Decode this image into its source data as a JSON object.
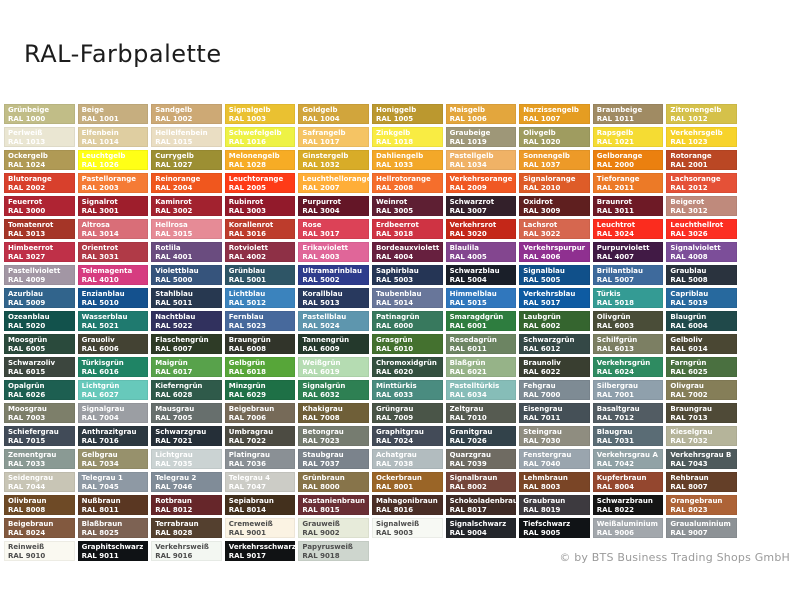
{
  "title": "RAL-Farbpalette",
  "footer": {
    "copyright": "© by BTS Business Trading Shops GmbH"
  },
  "palette": {
    "columns": 10,
    "text_color_light": "#ffffff",
    "text_color_dark": "#4d4d4d",
    "colors": [
      {
        "name": "Grünbeige",
        "code": "RAL 1000",
        "hex": "#C1BD87"
      },
      {
        "name": "Beige",
        "code": "RAL 1001",
        "hex": "#C6AE7F"
      },
      {
        "name": "Sandgelb",
        "code": "RAL 1002",
        "hex": "#CDA975"
      },
      {
        "name": "Signalgelb",
        "code": "RAL 1003",
        "hex": "#EAC131"
      },
      {
        "name": "Goldgelb",
        "code": "RAL 1004",
        "hex": "#D1A53C"
      },
      {
        "name": "Honiggelb",
        "code": "RAL 1005",
        "hex": "#BB982F"
      },
      {
        "name": "Maisgelb",
        "code": "RAL 1006",
        "hex": "#E3A63D"
      },
      {
        "name": "Narzissengelb",
        "code": "RAL 1007",
        "hex": "#E59D22"
      },
      {
        "name": "Braunbeige",
        "code": "RAL 1011",
        "hex": "#A08B63"
      },
      {
        "name": "Zitronengelb",
        "code": "RAL 1012",
        "hex": "#D5C14A"
      },
      {
        "name": "Perlweiß",
        "code": "RAL 1013",
        "hex": "#EAE6D2"
      },
      {
        "name": "Elfenbein",
        "code": "RAL 1014",
        "hex": "#DFCEA1"
      },
      {
        "name": "Hellelfenbein",
        "code": "RAL 1015",
        "hex": "#EADEC3"
      },
      {
        "name": "Schwefelgelb",
        "code": "RAL 1016",
        "hex": "#EEF245"
      },
      {
        "name": "Safrangelb",
        "code": "RAL 1017",
        "hex": "#F5C464"
      },
      {
        "name": "Zinkgelb",
        "code": "RAL 1018",
        "hex": "#F9EC43"
      },
      {
        "name": "Graubeige",
        "code": "RAL 1019",
        "hex": "#9E9778"
      },
      {
        "name": "Olivgelb",
        "code": "RAL 1020",
        "hex": "#9F9C60"
      },
      {
        "name": "Rapsgelb",
        "code": "RAL 1021",
        "hex": "#F5DC33"
      },
      {
        "name": "Verkehrsgelb",
        "code": "RAL 1023",
        "hex": "#F7D32B"
      },
      {
        "name": "Ockergelb",
        "code": "RAL 1024",
        "hex": "#B09A55"
      },
      {
        "name": "Leuchtgelb",
        "code": "RAL 1026",
        "hex": "#FFFF16"
      },
      {
        "name": "Currygelb",
        "code": "RAL 1027",
        "hex": "#9C8F33"
      },
      {
        "name": "Melonengelb",
        "code": "RAL 1028",
        "hex": "#F7AC25"
      },
      {
        "name": "Ginstergelb",
        "code": "RAL 1032",
        "hex": "#D8AC28"
      },
      {
        "name": "Dahliengelb",
        "code": "RAL 1033",
        "hex": "#F3A829"
      },
      {
        "name": "Pastellgelb",
        "code": "RAL 1034",
        "hex": "#F0B266"
      },
      {
        "name": "Sonnengelb",
        "code": "RAL 1037",
        "hex": "#ED9A28"
      },
      {
        "name": "Gelborange",
        "code": "RAL 2000",
        "hex": "#EB800F"
      },
      {
        "name": "Rotorange",
        "code": "RAL 2001",
        "hex": "#BA4724"
      },
      {
        "name": "Blutorange",
        "code": "RAL 2002",
        "hex": "#D8402C"
      },
      {
        "name": "Pastellorange",
        "code": "RAL 2003",
        "hex": "#F57B35"
      },
      {
        "name": "Reinorange",
        "code": "RAL 2004",
        "hex": "#F0571E"
      },
      {
        "name": "Leuchtorange",
        "code": "RAL 2005",
        "hex": "#FE3B17"
      },
      {
        "name": "Leuchthellorange",
        "code": "RAL 2007",
        "hex": "#FFAE38"
      },
      {
        "name": "Hellrotorange",
        "code": "RAL 2008",
        "hex": "#F56E2C"
      },
      {
        "name": "Verkehrsorange",
        "code": "RAL 2009",
        "hex": "#F05823"
      },
      {
        "name": "Signalorange",
        "code": "RAL 2010",
        "hex": "#DE5C28"
      },
      {
        "name": "Tieforange",
        "code": "RAL 2011",
        "hex": "#EC7A27"
      },
      {
        "name": "Lachsorange",
        "code": "RAL 2012",
        "hex": "#E55137"
      },
      {
        "name": "Feuerrot",
        "code": "RAL 3000",
        "hex": "#AF2433"
      },
      {
        "name": "Signalrot",
        "code": "RAL 3001",
        "hex": "#9E1E2C"
      },
      {
        "name": "Kaminrot",
        "code": "RAL 3002",
        "hex": "#A2222F"
      },
      {
        "name": "Rubinrot",
        "code": "RAL 3003",
        "hex": "#921A2B"
      },
      {
        "name": "Purpurrot",
        "code": "RAL 3004",
        "hex": "#641627"
      },
      {
        "name": "Weinrot",
        "code": "RAL 3005",
        "hex": "#5E1F33"
      },
      {
        "name": "Schwarzrot",
        "code": "RAL 3007",
        "hex": "#33202A"
      },
      {
        "name": "Oxidrot",
        "code": "RAL 3009",
        "hex": "#5F1F1F"
      },
      {
        "name": "Braunrot",
        "code": "RAL 3011",
        "hex": "#6E1A26"
      },
      {
        "name": "Beigerot",
        "code": "RAL 3012",
        "hex": "#BF8A7C"
      },
      {
        "name": "Tomatenrot",
        "code": "RAL 3013",
        "hex": "#A53527"
      },
      {
        "name": "Altrosa",
        "code": "RAL 3014",
        "hex": "#D96E78"
      },
      {
        "name": "Hellrosa",
        "code": "RAL 3015",
        "hex": "#E68B96"
      },
      {
        "name": "Korallenrot",
        "code": "RAL 3016",
        "hex": "#BD3C2C"
      },
      {
        "name": "Rose",
        "code": "RAL 3017",
        "hex": "#DC4257"
      },
      {
        "name": "Erdbeerrot",
        "code": "RAL 3018",
        "hex": "#CF3343"
      },
      {
        "name": "Verkehrsrot",
        "code": "RAL 3020",
        "hex": "#C42718"
      },
      {
        "name": "Lachsrot",
        "code": "RAL 3022",
        "hex": "#D6674F"
      },
      {
        "name": "Leuchtrot",
        "code": "RAL 3024",
        "hex": "#FB2C1E"
      },
      {
        "name": "Leuchthellrot",
        "code": "RAL 3026",
        "hex": "#FC2E22"
      },
      {
        "name": "Himbeerrot",
        "code": "RAL 3027",
        "hex": "#BF3048"
      },
      {
        "name": "Orientrot",
        "code": "RAL 3031",
        "hex": "#B03A47"
      },
      {
        "name": "Rotlila",
        "code": "RAL 4001",
        "hex": "#6A4C7F"
      },
      {
        "name": "Rotviolett",
        "code": "RAL 4002",
        "hex": "#8E3046"
      },
      {
        "name": "Erikaviolett",
        "code": "RAL 4003",
        "hex": "#E06699"
      },
      {
        "name": "Bordeauxviolett",
        "code": "RAL 4004",
        "hex": "#67203F"
      },
      {
        "name": "Blaulila",
        "code": "RAL 4005",
        "hex": "#83468F"
      },
      {
        "name": "Verkehrspurpur",
        "code": "RAL 4006",
        "hex": "#8F3090"
      },
      {
        "name": "Purpurviolett",
        "code": "RAL 4007",
        "hex": "#411A45"
      },
      {
        "name": "Signalviolett",
        "code": "RAL 4008",
        "hex": "#7C4E99"
      },
      {
        "name": "Pastellviolett",
        "code": "RAL 4009",
        "hex": "#A296A4"
      },
      {
        "name": "Telemagenta",
        "code": "RAL 4010",
        "hex": "#D63C80"
      },
      {
        "name": "Violettblau",
        "code": "RAL 5000",
        "hex": "#36547C"
      },
      {
        "name": "Grünblau",
        "code": "RAL 5001",
        "hex": "#2E5566"
      },
      {
        "name": "Ultramarinblau",
        "code": "RAL 5002",
        "hex": "#2E3C8C"
      },
      {
        "name": "Saphirblau",
        "code": "RAL 5003",
        "hex": "#253555"
      },
      {
        "name": "Schwarzblau",
        "code": "RAL 5004",
        "hex": "#1A1F29"
      },
      {
        "name": "Signalblau",
        "code": "RAL 5005",
        "hex": "#10508A"
      },
      {
        "name": "Brillantblau",
        "code": "RAL 5007",
        "hex": "#3E6A9C"
      },
      {
        "name": "Graublau",
        "code": "RAL 5008",
        "hex": "#2A333E"
      },
      {
        "name": "Azurblau",
        "code": "RAL 5009",
        "hex": "#31648C"
      },
      {
        "name": "Enzianblau",
        "code": "RAL 5010",
        "hex": "#14518E"
      },
      {
        "name": "Stahlblau",
        "code": "RAL 5011",
        "hex": "#273850"
      },
      {
        "name": "Lichtblau",
        "code": "RAL 5012",
        "hex": "#3B83BD"
      },
      {
        "name": "Korallblau",
        "code": "RAL 5013",
        "hex": "#28395E"
      },
      {
        "name": "Taubenblau",
        "code": "RAL 5014",
        "hex": "#68769A"
      },
      {
        "name": "Himmelblau",
        "code": "RAL 5015",
        "hex": "#3077BD"
      },
      {
        "name": "Verkehrsblau",
        "code": "RAL 5017",
        "hex": "#0E5BA2"
      },
      {
        "name": "Türkis",
        "code": "RAL 5018",
        "hex": "#349B94"
      },
      {
        "name": "Capriblau",
        "code": "RAL 5019",
        "hex": "#27699E"
      },
      {
        "name": "Ozeanblau",
        "code": "RAL 5020",
        "hex": "#12524C"
      },
      {
        "name": "Wasserblau",
        "code": "RAL 5021",
        "hex": "#1F7A6F"
      },
      {
        "name": "Nachtblau",
        "code": "RAL 5022",
        "hex": "#31315E"
      },
      {
        "name": "Fernblau",
        "code": "RAL 5023",
        "hex": "#47699C"
      },
      {
        "name": "Pastellblau",
        "code": "RAL 5024",
        "hex": "#5E96AE"
      },
      {
        "name": "Patinagrün",
        "code": "RAL 6000",
        "hex": "#38795E"
      },
      {
        "name": "Smaragdgrün",
        "code": "RAL 6001",
        "hex": "#2E7D3F"
      },
      {
        "name": "Laubgrün",
        "code": "RAL 6002",
        "hex": "#35652F"
      },
      {
        "name": "Olivgrün",
        "code": "RAL 6003",
        "hex": "#4A4D38"
      },
      {
        "name": "Blaugrün",
        "code": "RAL 6004",
        "hex": "#20494A"
      },
      {
        "name": "Moosgrün",
        "code": "RAL 6005",
        "hex": "#2A4A3C"
      },
      {
        "name": "Grauoliv",
        "code": "RAL 6006",
        "hex": "#434233"
      },
      {
        "name": "Flaschengrün",
        "code": "RAL 6007",
        "hex": "#2E3B26"
      },
      {
        "name": "Braungrün",
        "code": "RAL 6008",
        "hex": "#31342A"
      },
      {
        "name": "Tannengrün",
        "code": "RAL 6009",
        "hex": "#24392C"
      },
      {
        "name": "Grasgrün",
        "code": "RAL 6010",
        "hex": "#44712F"
      },
      {
        "name": "Resedagrün",
        "code": "RAL 6011",
        "hex": "#6C8462"
      },
      {
        "name": "Schwarzgrün",
        "code": "RAL 6012",
        "hex": "#344846"
      },
      {
        "name": "Schilfgrün",
        "code": "RAL 6013",
        "hex": "#7C7F63"
      },
      {
        "name": "Gelboliv",
        "code": "RAL 6014",
        "hex": "#4A4733"
      },
      {
        "name": "Schwarzoliv",
        "code": "RAL 6015",
        "hex": "#3C463E"
      },
      {
        "name": "Türkisgrün",
        "code": "RAL 6016",
        "hex": "#1F8465"
      },
      {
        "name": "Maigrün",
        "code": "RAL 6017",
        "hex": "#58A24B"
      },
      {
        "name": "Gelbgrün",
        "code": "RAL 6018",
        "hex": "#57A639"
      },
      {
        "name": "Weißgrün",
        "code": "RAL 6019",
        "hex": "#B5DCB2"
      },
      {
        "name": "Chromoxidgrün",
        "code": "RAL 6020",
        "hex": "#34503F"
      },
      {
        "name": "Blaßgrün",
        "code": "RAL 6021",
        "hex": "#96B388"
      },
      {
        "name": "Braunoliv",
        "code": "RAL 6022",
        "hex": "#393E30"
      },
      {
        "name": "Verkehrsgrün",
        "code": "RAL 6024",
        "hex": "#2E8B61"
      },
      {
        "name": "Farngrün",
        "code": "RAL 6025",
        "hex": "#4A7040"
      },
      {
        "name": "Opalgrün",
        "code": "RAL 6026",
        "hex": "#1D5F51"
      },
      {
        "name": "Lichtgrün",
        "code": "RAL 6027",
        "hex": "#67C9BB"
      },
      {
        "name": "Kieferngrün",
        "code": "RAL 6028",
        "hex": "#2F5A4A"
      },
      {
        "name": "Minzgrün",
        "code": "RAL 6029",
        "hex": "#1E7046"
      },
      {
        "name": "Signalgrün",
        "code": "RAL 6032",
        "hex": "#2E8053"
      },
      {
        "name": "Minttürkis",
        "code": "RAL 6033",
        "hex": "#4A8C80"
      },
      {
        "name": "Pastelltürkis",
        "code": "RAL 6034",
        "hex": "#86BDB8"
      },
      {
        "name": "Fehgrau",
        "code": "RAL 7000",
        "hex": "#7E8B94"
      },
      {
        "name": "Silbergrau",
        "code": "RAL 7001",
        "hex": "#8FA0AC"
      },
      {
        "name": "Olivgrau",
        "code": "RAL 7002",
        "hex": "#857E58"
      },
      {
        "name": "Moosgrau",
        "code": "RAL 7003",
        "hex": "#7D7F6A"
      },
      {
        "name": "Signalgrau",
        "code": "RAL 7004",
        "hex": "#9B9EA3"
      },
      {
        "name": "Mausgrau",
        "code": "RAL 7005",
        "hex": "#676F6D"
      },
      {
        "name": "Beigebraun",
        "code": "RAL 7006",
        "hex": "#766A58"
      },
      {
        "name": "Khakigrau",
        "code": "RAL 7008",
        "hex": "#6F5F38"
      },
      {
        "name": "Grüngrau",
        "code": "RAL 7009",
        "hex": "#4A5548"
      },
      {
        "name": "Zeltgrau",
        "code": "RAL 7010",
        "hex": "#565B51"
      },
      {
        "name": "Eisengrau",
        "code": "RAL 7011",
        "hex": "#455057"
      },
      {
        "name": "Basaltgrau",
        "code": "RAL 7012",
        "hex": "#525C63"
      },
      {
        "name": "Braungrau",
        "code": "RAL 7013",
        "hex": "#4F4A37"
      },
      {
        "name": "Schiefergrau",
        "code": "RAL 7015",
        "hex": "#414B58"
      },
      {
        "name": "Anthrazitgrau",
        "code": "RAL 7016",
        "hex": "#2C3840"
      },
      {
        "name": "Schwarzgrau",
        "code": "RAL 7021",
        "hex": "#252F38"
      },
      {
        "name": "Umbragrau",
        "code": "RAL 7022",
        "hex": "#4C4B42"
      },
      {
        "name": "Betongrau",
        "code": "RAL 7023",
        "hex": "#767C70"
      },
      {
        "name": "Graphitgrau",
        "code": "RAL 7024",
        "hex": "#434B58"
      },
      {
        "name": "Granitgrau",
        "code": "RAL 7026",
        "hex": "#32424A"
      },
      {
        "name": "Steingrau",
        "code": "RAL 7030",
        "hex": "#8F8D80"
      },
      {
        "name": "Blaugrau",
        "code": "RAL 7031",
        "hex": "#5A6C75"
      },
      {
        "name": "Kieselgrau",
        "code": "RAL 7032",
        "hex": "#B5B49A"
      },
      {
        "name": "Zementgrau",
        "code": "RAL 7033",
        "hex": "#8A9A94"
      },
      {
        "name": "Gelbgrau",
        "code": "RAL 7034",
        "hex": "#97916C"
      },
      {
        "name": "Lichtgrau",
        "code": "RAL 7035",
        "hex": "#CBD3D3"
      },
      {
        "name": "Platingrau",
        "code": "RAL 7036",
        "hex": "#8A9095"
      },
      {
        "name": "Staubgrau",
        "code": "RAL 7037",
        "hex": "#7B838C"
      },
      {
        "name": "Achatgrau",
        "code": "RAL 7038",
        "hex": "#B2BCBF"
      },
      {
        "name": "Quarzgrau",
        "code": "RAL 7039",
        "hex": "#6F6B62"
      },
      {
        "name": "Fenstergrau",
        "code": "RAL 7040",
        "hex": "#9AA5AE"
      },
      {
        "name": "Verkehrsgrau A",
        "code": "RAL 7042",
        "hex": "#91A2A6"
      },
      {
        "name": "Verkehrsgrau B",
        "code": "RAL 7043",
        "hex": "#4E5A5C"
      },
      {
        "name": "Seidengrau",
        "code": "RAL 7044",
        "hex": "#C8C5B5"
      },
      {
        "name": "Telegrau 1",
        "code": "RAL 7045",
        "hex": "#8E99A4"
      },
      {
        "name": "Telegrau 2",
        "code": "RAL 7046",
        "hex": "#808C98"
      },
      {
        "name": "Telegrau 4",
        "code": "RAL 7047",
        "hex": "#CCCCC6"
      },
      {
        "name": "Grünbraun",
        "code": "RAL 8000",
        "hex": "#87744A"
      },
      {
        "name": "Ockerbraun",
        "code": "RAL 8001",
        "hex": "#9A6527"
      },
      {
        "name": "Signalbraun",
        "code": "RAL 8002",
        "hex": "#74453A"
      },
      {
        "name": "Lehmbraun",
        "code": "RAL 8003",
        "hex": "#7A4526"
      },
      {
        "name": "Kupferbraun",
        "code": "RAL 8004",
        "hex": "#94472F"
      },
      {
        "name": "Rehbraun",
        "code": "RAL 8007",
        "hex": "#643F28"
      },
      {
        "name": "Olivbraun",
        "code": "RAL 8008",
        "hex": "#6E4A26"
      },
      {
        "name": "Nußbraun",
        "code": "RAL 8011",
        "hex": "#5A3722"
      },
      {
        "name": "Rotbraun",
        "code": "RAL 8012",
        "hex": "#66262A"
      },
      {
        "name": "Sepiabraun",
        "code": "RAL 8014",
        "hex": "#43301D"
      },
      {
        "name": "Kastanienbraun",
        "code": "RAL 8015",
        "hex": "#6A2E35"
      },
      {
        "name": "Mahagonibraun",
        "code": "RAL 8016",
        "hex": "#4A2E26"
      },
      {
        "name": "Schokoladenbraun",
        "code": "RAL 8017",
        "hex": "#3F2B26"
      },
      {
        "name": "Graubraun",
        "code": "RAL 8019",
        "hex": "#3D3A3F"
      },
      {
        "name": "Schwarzbraun",
        "code": "RAL 8022",
        "hex": "#151515"
      },
      {
        "name": "Orangebraun",
        "code": "RAL 8023",
        "hex": "#AD6337"
      },
      {
        "name": "Beigebraun",
        "code": "RAL 8024",
        "hex": "#82593F"
      },
      {
        "name": "Blaßbraun",
        "code": "RAL 8025",
        "hex": "#7D6253"
      },
      {
        "name": "Terrabraun",
        "code": "RAL 8028",
        "hex": "#54402F"
      },
      {
        "name": "Cremeweiß",
        "code": "RAL 9001",
        "hex": "#FBF3E3",
        "dark_text": true
      },
      {
        "name": "Grauweiß",
        "code": "RAL 9002",
        "hex": "#E7EBDA",
        "dark_text": true
      },
      {
        "name": "Signalweiß",
        "code": "RAL 9003",
        "hex": "#F7F9F4",
        "dark_text": true
      },
      {
        "name": "Signalschwarz",
        "code": "RAL 9004",
        "hex": "#23262B"
      },
      {
        "name": "Tiefschwarz",
        "code": "RAL 9005",
        "hex": "#101316"
      },
      {
        "name": "Weißaluminium",
        "code": "RAL 9006",
        "hex": "#A2A7AC"
      },
      {
        "name": "Graualuminium",
        "code": "RAL 9007",
        "hex": "#8D9296"
      },
      {
        "name": "Reinweiß",
        "code": "RAL 9010",
        "hex": "#FAF9F1",
        "dark_text": true
      },
      {
        "name": "Graphitschwarz",
        "code": "RAL 9011",
        "hex": "#0F1215"
      },
      {
        "name": "Verkehrsweiß",
        "code": "RAL 9016",
        "hex": "#F3F7F2",
        "dark_text": true
      },
      {
        "name": "Verkehrsschwarz",
        "code": "RAL 9017",
        "hex": "#101214"
      },
      {
        "name": "Papyrusweiß",
        "code": "RAL 9018",
        "hex": "#CED6CE",
        "dark_text": true
      }
    ]
  }
}
